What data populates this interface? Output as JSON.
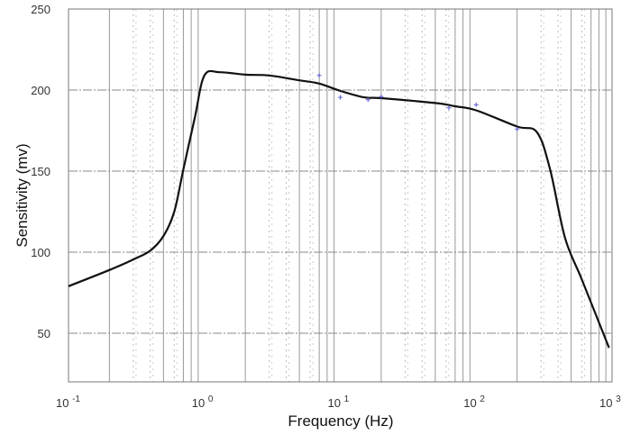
{
  "chart_data": {
    "type": "line",
    "title": "",
    "xlabel": "Frequency (Hz)",
    "ylabel": "Sensitivity (mv)",
    "xscale": "log",
    "xlim": [
      0.1,
      1000
    ],
    "ylim": [
      20,
      250
    ],
    "grid": true,
    "x_ticks": [
      {
        "base": "10",
        "exp": "-1",
        "value": 0.1
      },
      {
        "base": "10",
        "exp": "0",
        "value": 1
      },
      {
        "base": "10",
        "exp": "1",
        "value": 10
      },
      {
        "base": "10",
        "exp": "2",
        "value": 100
      },
      {
        "base": "10",
        "exp": "3",
        "value": 1000
      }
    ],
    "y_ticks": [
      "50",
      "100",
      "150",
      "200",
      "250"
    ],
    "colors": {
      "curve": "#111111",
      "markers": "#5a5ad0",
      "grid": "#888888"
    },
    "series": [
      {
        "kind": "line",
        "x": [
          0.1,
          0.2,
          0.3,
          0.4,
          0.5,
          0.6,
          0.7,
          0.85,
          1.0,
          1.3,
          2,
          3,
          5,
          7,
          10,
          15,
          20,
          50,
          70,
          100,
          200,
          280,
          350,
          450,
          600,
          950
        ],
        "y": [
          79,
          89,
          95.5,
          101,
          110,
          125,
          151,
          183,
          209,
          211,
          209.5,
          209,
          206,
          204,
          199.5,
          195.5,
          195,
          192,
          190,
          187.5,
          177.5,
          174,
          151,
          109,
          83,
          41
        ]
      },
      {
        "kind": "scatter",
        "marker": "+",
        "x": [
          7,
          10,
          16,
          20,
          63,
          100,
          200
        ],
        "y": [
          209,
          195.5,
          194,
          196,
          189,
          191,
          176
        ]
      }
    ]
  }
}
